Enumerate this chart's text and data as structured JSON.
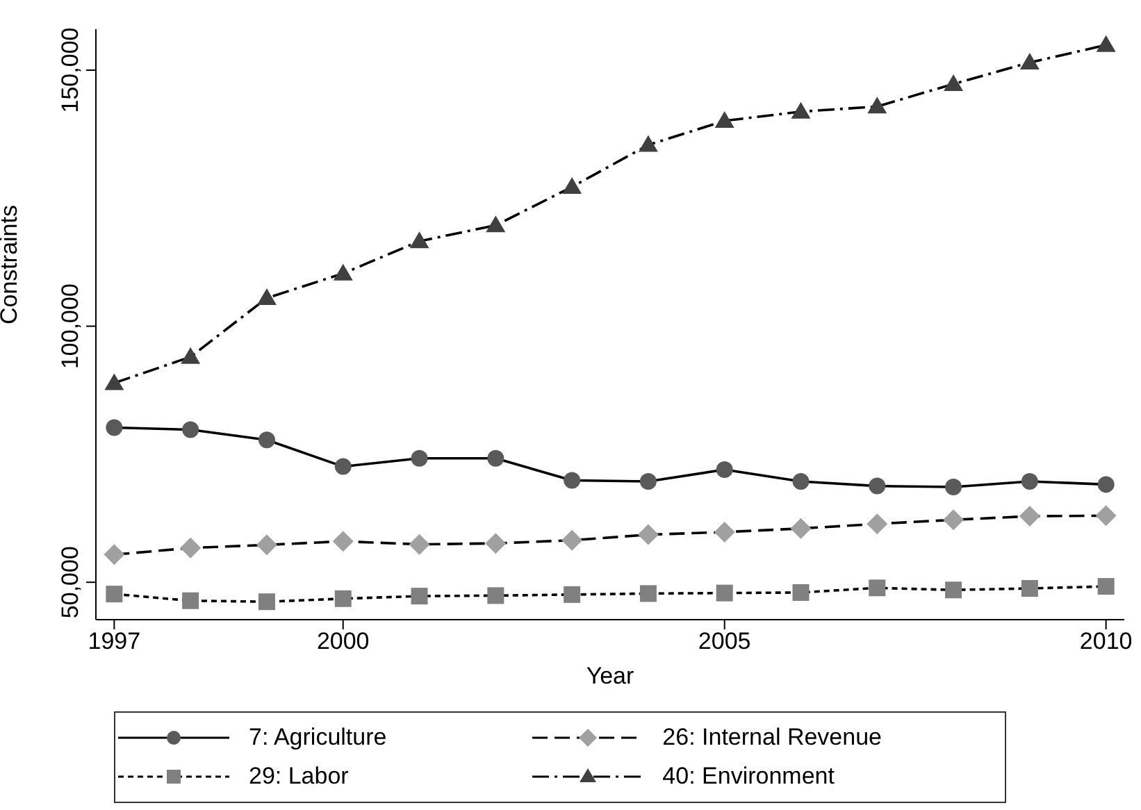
{
  "chart_data": {
    "type": "line",
    "xlabel": "Year",
    "ylabel": "Constraints",
    "x": [
      1997,
      1998,
      1999,
      2000,
      2001,
      2002,
      2003,
      2004,
      2005,
      2006,
      2007,
      2008,
      2009,
      2010
    ],
    "xlim": [
      1996.76,
      2010.24
    ],
    "xticks": [
      1997,
      2000,
      2005,
      2010
    ],
    "ylim": [
      42700,
      158000
    ],
    "yticks": [
      {
        "value": 50000,
        "label": "50,000"
      },
      {
        "value": 100000,
        "label": "100,000"
      },
      {
        "value": 150000,
        "label": "150,000"
      }
    ],
    "grid": false,
    "legend": "bottom",
    "series": [
      {
        "name": "7: Agriculture",
        "color": "#5a5a5a",
        "marker": "circle",
        "line_style": "solid",
        "values": [
          80200,
          79800,
          77800,
          72600,
          74200,
          74200,
          69900,
          69700,
          72000,
          69700,
          68800,
          68600,
          69700,
          69100
        ]
      },
      {
        "name": "26: Internal Revenue",
        "color": "#a0a0a0",
        "marker": "diamond",
        "line_style": "dashed",
        "values": [
          55400,
          56700,
          57300,
          58000,
          57400,
          57600,
          58200,
          59300,
          59800,
          60500,
          61400,
          62200,
          62900,
          63000
        ]
      },
      {
        "name": "29: Labor",
        "color": "#808080",
        "marker": "square",
        "line_style": "dotted",
        "values": [
          47700,
          46400,
          46200,
          46800,
          47300,
          47400,
          47600,
          47800,
          47900,
          48000,
          48900,
          48500,
          48800,
          49200
        ]
      },
      {
        "name": "40: Environment",
        "color": "#404040",
        "marker": "triangle",
        "line_style": "dashdot",
        "values": [
          88900,
          94000,
          105500,
          110300,
          116600,
          119700,
          127200,
          135400,
          140100,
          141900,
          142900,
          147300,
          151500,
          154900
        ]
      }
    ]
  }
}
